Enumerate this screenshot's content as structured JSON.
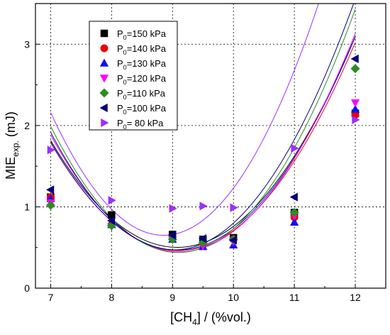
{
  "chart_data": {
    "type": "scatter",
    "title": "",
    "xlabel": {
      "main": "[CH",
      "sub": "4",
      "tail": "] / (%vol.)"
    },
    "ylabel": {
      "main": "MIE",
      "sub": "exp.",
      "tail": " (mJ)"
    },
    "xlim": [
      6.75,
      12.5
    ],
    "ylim": [
      0,
      3.5
    ],
    "x_ticks": [
      7,
      8,
      9,
      10,
      11,
      12
    ],
    "y_ticks": [
      0,
      1,
      2,
      3
    ],
    "grid": true,
    "grid_style": "dotted",
    "legend_position": "top-left",
    "series": [
      {
        "name": "P0=150 kPa",
        "label_main": "P",
        "label_sub": "0",
        "label_tail": "=150 kPa",
        "marker": "square",
        "color": "#000000",
        "x": [
          7,
          8,
          9,
          9.5,
          10,
          11,
          12
        ],
        "y": [
          1.12,
          0.9,
          0.66,
          0.6,
          0.62,
          0.93,
          2.15
        ],
        "fit": [
          0.304,
          -5.52,
          25.56
        ]
      },
      {
        "name": "P0=140 kPa",
        "label_main": "P",
        "label_sub": "0",
        "label_tail": "=140 kPa",
        "marker": "circle",
        "color": "#ee0000",
        "x": [
          7,
          8,
          9,
          9.5,
          10,
          11,
          12
        ],
        "y": [
          1.12,
          0.78,
          0.63,
          0.55,
          0.6,
          0.87,
          2.13
        ],
        "fit": [
          0.303,
          -5.51,
          25.51
        ]
      },
      {
        "name": "P0=130 kPa",
        "label_main": "P",
        "label_sub": "0",
        "label_tail": "=130 kPa",
        "marker": "triangle-up",
        "color": "#1010ee",
        "x": [
          7,
          8,
          9,
          9.5,
          10,
          11,
          12
        ],
        "y": [
          1.1,
          0.78,
          0.6,
          0.51,
          0.53,
          0.81,
          2.2
        ],
        "fit": [
          0.307,
          -5.574,
          25.77
        ]
      },
      {
        "name": "P0=120 kPa",
        "label_main": "P",
        "label_sub": "0",
        "label_tail": "=120 kPa",
        "marker": "triangle-down",
        "color": "#ff00ff",
        "x": [
          7,
          8,
          9,
          9.5,
          10,
          11,
          12
        ],
        "y": [
          1.05,
          0.76,
          0.6,
          0.52,
          0.57,
          0.89,
          2.28
        ],
        "fit": [
          0.322,
          -5.868,
          27.18
        ]
      },
      {
        "name": "P0=110 kPa",
        "label_main": "P",
        "label_sub": "0",
        "label_tail": "=110 kPa",
        "marker": "diamond",
        "color": "#2e8b20",
        "x": [
          7,
          8,
          9,
          9.5,
          10,
          11,
          12
        ],
        "y": [
          1.02,
          0.77,
          0.6,
          0.56,
          0.6,
          0.93,
          2.7
        ],
        "fit": [
          0.354,
          -6.438,
          29.71
        ]
      },
      {
        "name": "P0=100 kPa",
        "label_main": "P",
        "label_sub": "0",
        "label_tail": "=100 kPa",
        "marker": "triangle-left",
        "color": "#000080",
        "x": [
          7,
          8,
          9,
          9.5,
          10,
          11,
          12
        ],
        "y": [
          1.21,
          0.83,
          0.65,
          0.61,
          0.59,
          1.12,
          2.82
        ],
        "fit": [
          0.35,
          -6.322,
          29.02
        ]
      },
      {
        "name": "P0= 80 kPa",
        "label_main": "P",
        "label_sub": "0",
        "label_tail": "=  80 kPa",
        "marker": "triangle-right",
        "color": "#9b30ff",
        "x": [
          7,
          8,
          9,
          9.5,
          10,
          11,
          12
        ],
        "y": [
          1.7,
          1.08,
          0.98,
          1.01,
          0.99,
          1.72,
          2.07
        ],
        "fit": [
          0.44,
          -7.79,
          35.13
        ]
      }
    ]
  }
}
